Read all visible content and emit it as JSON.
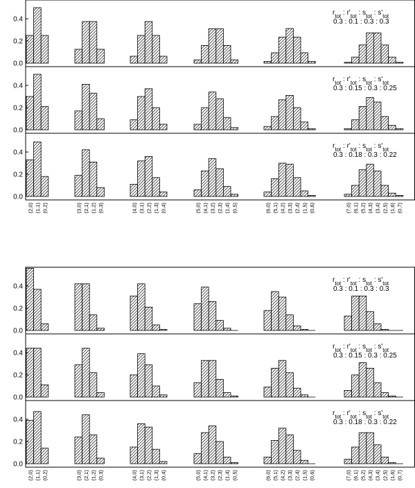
{
  "chart_data": [
    {
      "type": "bar",
      "ylim": [
        0,
        0.6
      ],
      "yticks": [
        "0.0",
        "0.2",
        "0.4",
        "0.6"
      ],
      "bar_fill": "hatched",
      "groups": [
        {
          "labels": [
            "(2,0)",
            "(1,1)",
            "(0,2)"
          ]
        },
        {
          "labels": [
            "(3,0)",
            "(2,1)",
            "(1,2)",
            "(0,3)"
          ]
        },
        {
          "labels": [
            "(4,0)",
            "(3,1)",
            "(2,2)",
            "(1,3)",
            "(0,4)"
          ]
        },
        {
          "labels": [
            "(5,0)",
            "(4,1)",
            "(3,2)",
            "(2,3)",
            "(1,4)",
            "(0,5)"
          ]
        },
        {
          "labels": [
            "(6,0)",
            "(5,1)",
            "(4,2)",
            "(3,3)",
            "(2,4)",
            "(1,5)",
            "(0,6)"
          ]
        },
        {
          "labels": [
            "(7,0)",
            "(6,1)",
            "(5,2)",
            "(4,3)",
            "(3,4)",
            "(2,5)",
            "(1,6)",
            "(0,7)"
          ]
        }
      ],
      "panels": [
        {
          "legend_l1": [
            "r",
            "tot",
            " : r'",
            "tot",
            " :  s",
            "tot",
            " : s'",
            "tot"
          ],
          "legend_l2": "0.3 : 0.1 : 0.3 : 0.3",
          "values": [
            [
              0.25,
              0.5,
              0.25
            ],
            [
              0.125,
              0.375,
              0.375,
              0.125
            ],
            [
              0.0625,
              0.25,
              0.375,
              0.25,
              0.0625
            ],
            [
              0.03,
              0.16,
              0.31,
              0.31,
              0.16,
              0.03
            ],
            [
              0.016,
              0.094,
              0.234,
              0.312,
              0.234,
              0.094,
              0.016
            ],
            [
              0.008,
              0.055,
              0.164,
              0.273,
              0.273,
              0.164,
              0.055,
              0.008
            ]
          ]
        },
        {
          "legend_l1": [
            "r",
            "tot",
            " : r'",
            "tot",
            " :  s",
            "tot",
            " : s'",
            "tot"
          ],
          "legend_l2": "0.3 : 0.15 : 0.3 : 0.25",
          "values": [
            [
              0.3,
              0.5,
              0.21
            ],
            [
              0.17,
              0.41,
              0.33,
              0.1
            ],
            [
              0.09,
              0.3,
              0.37,
              0.2,
              0.05
            ],
            [
              0.05,
              0.2,
              0.34,
              0.28,
              0.11,
              0.02
            ],
            [
              0.03,
              0.12,
              0.27,
              0.31,
              0.2,
              0.07,
              0.01
            ],
            [
              0.01,
              0.09,
              0.21,
              0.29,
              0.25,
              0.12,
              0.04,
              0.01
            ]
          ]
        },
        {
          "legend_l1": [
            "r",
            "tot",
            " : r'",
            "tot",
            " :  s",
            "tot",
            " : s'",
            "tot"
          ],
          "legend_l2": "0.3 : 0.18 : 0.3 : 0.22",
          "values": [
            [
              0.33,
              0.49,
              0.18
            ],
            [
              0.19,
              0.42,
              0.31,
              0.08
            ],
            [
              0.11,
              0.32,
              0.36,
              0.17,
              0.04
            ],
            [
              0.06,
              0.23,
              0.34,
              0.25,
              0.09,
              0.02
            ],
            [
              0.04,
              0.16,
              0.3,
              0.29,
              0.17,
              0.05,
              0.01
            ],
            [
              0.02,
              0.1,
              0.24,
              0.29,
              0.23,
              0.1,
              0.03,
              0.01
            ]
          ]
        }
      ]
    },
    {
      "type": "bar",
      "ylim": [
        0,
        0.6
      ],
      "yticks": [
        "0.0",
        "0.2",
        "0.4",
        "0.6"
      ],
      "bar_fill": "hatched",
      "groups": [
        {
          "labels": [
            "(2,0)",
            "(1,1)",
            "(0,2)"
          ]
        },
        {
          "labels": [
            "(3,0)",
            "(2,1)",
            "(1,2)",
            "(0,3)"
          ]
        },
        {
          "labels": [
            "(4,0)",
            "(3,1)",
            "(2,2)",
            "(1,3)",
            "(0,4)"
          ]
        },
        {
          "labels": [
            "(5,0)",
            "(4,1)",
            "(3,2)",
            "(2,3)",
            "(1,4)",
            "(0,5)"
          ]
        },
        {
          "labels": [
            "(6,0)",
            "(5,1)",
            "(4,2)",
            "(3,3)",
            "(2,4)",
            "(1,5)",
            "(0,6)"
          ]
        },
        {
          "labels": [
            "(7,0)",
            "(6,1)",
            "(5,2)",
            "(4,3)",
            "(3,4)",
            "(2,5)",
            "(1,6)",
            "(0,7)"
          ]
        }
      ],
      "panels": [
        {
          "legend_l1": [
            "r",
            "tot",
            " : r'",
            "tot",
            " :  s",
            "tot",
            " : s'",
            "tot"
          ],
          "legend_l2": "0.3 : 0.1 : 0.3 : 0.3",
          "values": [
            [
              0.56,
              0.37,
              0.06
            ],
            [
              0.42,
              0.42,
              0.14,
              0.02
            ],
            [
              0.31,
              0.42,
              0.21,
              0.05,
              0.01
            ],
            [
              0.24,
              0.39,
              0.26,
              0.09,
              0.02,
              0.0
            ],
            [
              0.18,
              0.35,
              0.3,
              0.14,
              0.04,
              0.01,
              0.0
            ],
            [
              0.13,
              0.31,
              0.31,
              0.17,
              0.06,
              0.01,
              0.0,
              0.0
            ]
          ]
        },
        {
          "legend_l1": [
            "r",
            "tot",
            " : r'",
            "tot",
            " :  s",
            "tot",
            " : s'",
            "tot"
          ],
          "legend_l2": "0.3 : 0.15 : 0.3 : 0.25",
          "values": [
            [
              0.44,
              0.44,
              0.11
            ],
            [
              0.29,
              0.44,
              0.22,
              0.04
            ],
            [
              0.2,
              0.39,
              0.29,
              0.1,
              0.02
            ],
            [
              0.13,
              0.33,
              0.33,
              0.16,
              0.04,
              0.01
            ],
            [
              0.09,
              0.26,
              0.33,
              0.22,
              0.08,
              0.02,
              0.0
            ],
            [
              0.06,
              0.2,
              0.31,
              0.26,
              0.13,
              0.04,
              0.01,
              0.0
            ]
          ]
        },
        {
          "legend_l1": [
            "r",
            "tot",
            " : r'",
            "tot",
            " :  s",
            "tot",
            " : s'",
            "tot"
          ],
          "legend_l2": "0.3 : 0.18 : 0.3 : 0.22",
          "values": [
            [
              0.39,
              0.47,
              0.14
            ],
            [
              0.24,
              0.44,
              0.26,
              0.05
            ],
            [
              0.15,
              0.36,
              0.33,
              0.13,
              0.02
            ],
            [
              0.09,
              0.28,
              0.34,
              0.2,
              0.06,
              0.01
            ],
            [
              0.06,
              0.21,
              0.32,
              0.26,
              0.12,
              0.03,
              0.0
            ],
            [
              0.04,
              0.15,
              0.28,
              0.28,
              0.17,
              0.06,
              0.01,
              0.0
            ]
          ]
        }
      ]
    }
  ]
}
